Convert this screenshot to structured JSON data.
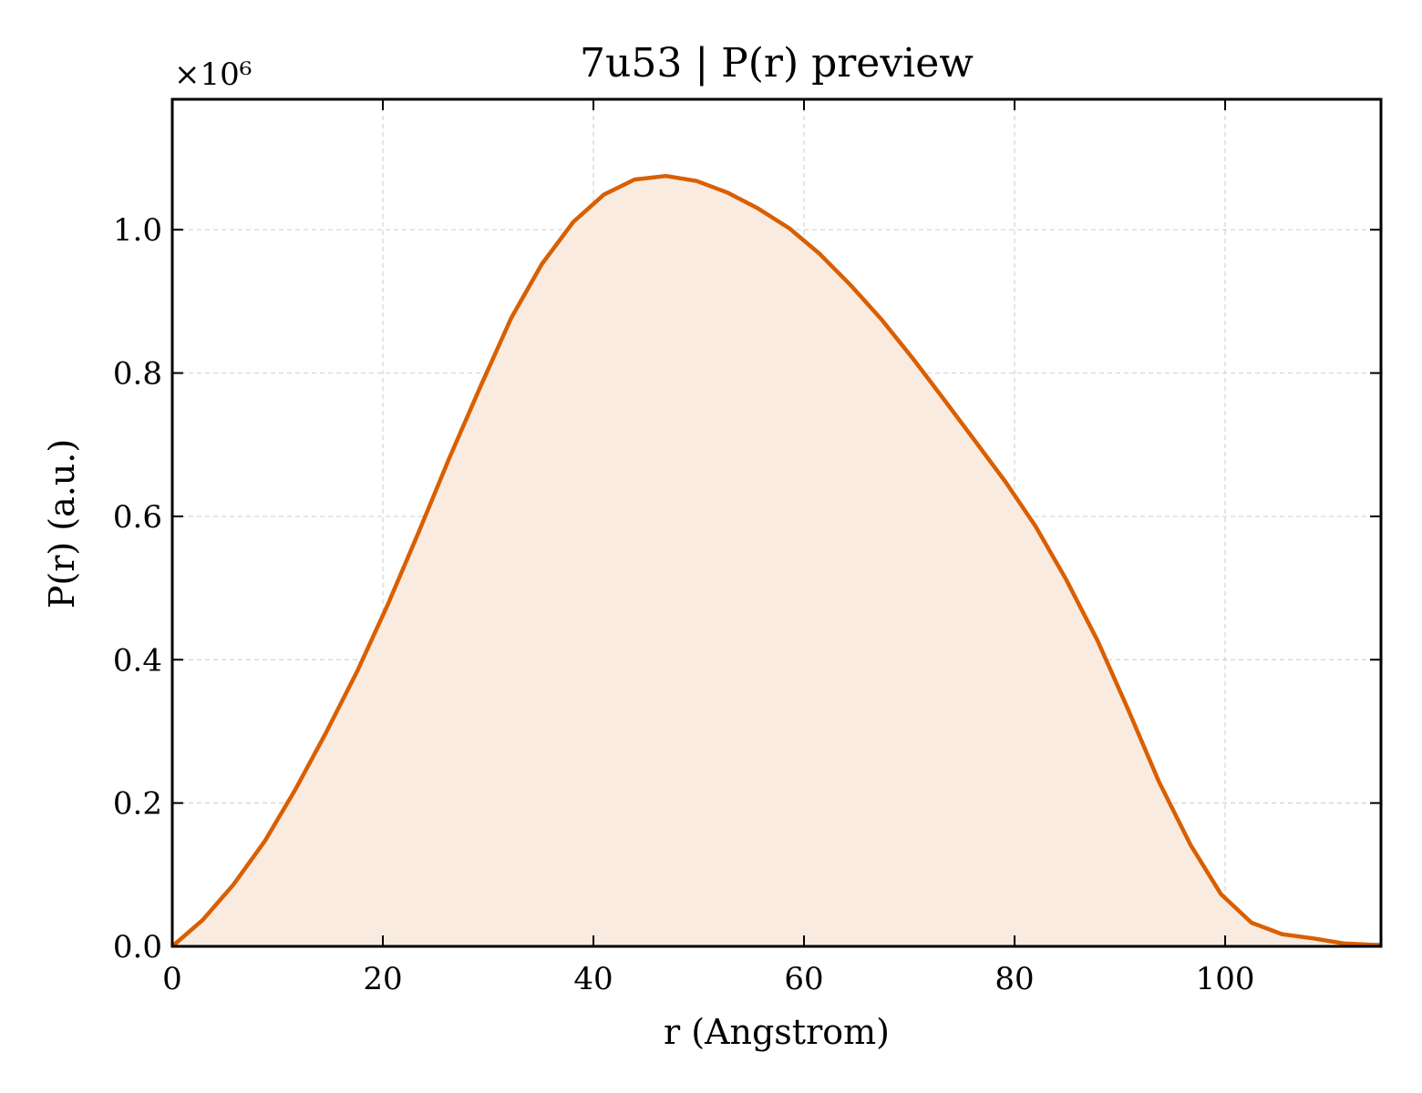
{
  "chart_data": {
    "type": "area",
    "title": "7u53 | P(r) preview",
    "xlabel": "r (Angstrom)",
    "ylabel": "P(r) (a.u.)",
    "y_offset_text": "×10⁶",
    "xlim": [
      0,
      114.8
    ],
    "ylim": [
      0,
      1.182
    ],
    "xticks": [
      0,
      20,
      40,
      60,
      80,
      100
    ],
    "xtick_labels": [
      "0",
      "20",
      "40",
      "60",
      "80",
      "100"
    ],
    "yticks": [
      0,
      0.2,
      0.4,
      0.6,
      0.8,
      1.0
    ],
    "ytick_labels": [
      "0.0",
      "0.2",
      "0.4",
      "0.6",
      "0.8",
      "1.0"
    ],
    "grid": true,
    "line_color": "#d95f02",
    "fill_color": "#f9ebe0",
    "series": [
      {
        "x": [
          0,
          2.9,
          5.8,
          8.8,
          11.7,
          14.6,
          17.6,
          20.5,
          23.4,
          26.3,
          29.3,
          32.2,
          35.1,
          38.1,
          41.0,
          43.9,
          46.9,
          49.8,
          52.7,
          55.6,
          58.6,
          61.5,
          64.4,
          67.4,
          70.3,
          73.2,
          76.1,
          79.1,
          82.0,
          84.9,
          87.9,
          90.8,
          93.7,
          96.7,
          99.6,
          102.5,
          105.4,
          108.4,
          111.3,
          114.2,
          114.8
        ],
        "y": [
          0.0,
          0.037,
          0.086,
          0.147,
          0.219,
          0.298,
          0.385,
          0.478,
          0.578,
          0.681,
          0.782,
          0.877,
          0.952,
          1.011,
          1.049,
          1.07,
          1.075,
          1.068,
          1.052,
          1.03,
          1.002,
          0.966,
          0.923,
          0.874,
          0.821,
          0.765,
          0.708,
          0.649,
          0.586,
          0.512,
          0.426,
          0.33,
          0.23,
          0.142,
          0.073,
          0.033,
          0.017,
          0.011,
          0.004,
          0.002,
          0.002
        ]
      }
    ]
  }
}
